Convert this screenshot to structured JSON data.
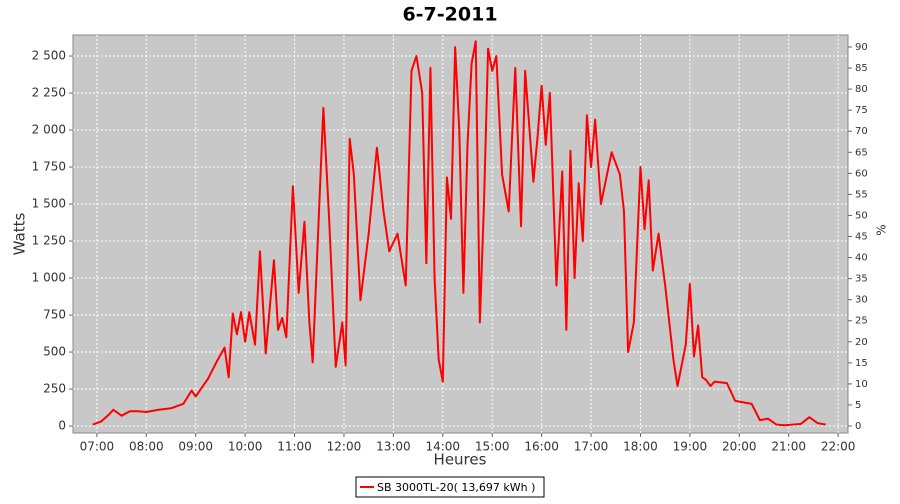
{
  "chart_data": {
    "type": "line",
    "title": "6-7-2011",
    "x_label": "Heures",
    "y_label": "Watts",
    "y2_label": "%",
    "x": [
      415,
      425,
      435,
      440,
      450,
      460,
      470,
      480,
      495,
      510,
      525,
      535,
      540,
      555,
      565,
      575,
      580,
      585,
      590,
      595,
      600,
      605,
      612,
      618,
      625,
      635,
      640,
      645,
      650,
      658,
      665,
      672,
      678,
      682,
      695,
      702,
      710,
      718,
      722,
      727,
      732,
      740,
      750,
      760,
      768,
      775,
      785,
      795,
      802,
      808,
      815,
      820,
      825,
      830,
      835,
      840,
      845,
      850,
      855,
      860,
      865,
      870,
      875,
      880,
      885,
      890,
      895,
      900,
      905,
      912,
      920,
      928,
      935,
      940,
      950,
      955,
      960,
      965,
      970,
      978,
      985,
      990,
      995,
      1000,
      1005,
      1010,
      1015,
      1020,
      1025,
      1032,
      1045,
      1055,
      1060,
      1065,
      1072,
      1080,
      1085,
      1090,
      1095,
      1102,
      1110,
      1120,
      1125,
      1135,
      1140,
      1145,
      1150,
      1155,
      1160,
      1165,
      1170,
      1185,
      1195,
      1205,
      1215,
      1225,
      1235,
      1245,
      1255,
      1265,
      1275,
      1285,
      1295,
      1305
    ],
    "series": [
      {
        "name": "SB 3000TL-20( 13,697 kWh  )",
        "color": "#ff0000",
        "values": [
          10,
          30,
          80,
          110,
          70,
          100,
          100,
          95,
          110,
          120,
          150,
          240,
          200,
          320,
          430,
          530,
          330,
          760,
          620,
          770,
          570,
          770,
          550,
          1180,
          490,
          1120,
          650,
          730,
          600,
          1620,
          900,
          1380,
          700,
          430,
          2150,
          1400,
          400,
          700,
          410,
          1940,
          1700,
          850,
          1300,
          1880,
          1450,
          1180,
          1300,
          950,
          2400,
          2500,
          2250,
          1100,
          2420,
          1000,
          450,
          300,
          1680,
          1400,
          2560,
          2000,
          900,
          1900,
          2450,
          2600,
          700,
          1500,
          2550,
          2400,
          2500,
          1700,
          1450,
          2420,
          1350,
          2400,
          1650,
          1950,
          2300,
          1900,
          2250,
          950,
          1720,
          650,
          1860,
          1000,
          1640,
          1250,
          2100,
          1750,
          2070,
          1500,
          1850,
          1700,
          1450,
          500,
          700,
          1750,
          1330,
          1660,
          1050,
          1300,
          950,
          450,
          270,
          550,
          960,
          470,
          680,
          330,
          310,
          270,
          300,
          290,
          170,
          160,
          150,
          40,
          50,
          10,
          5,
          10,
          15,
          60,
          20,
          10
        ]
      }
    ],
    "xlim": [
      391,
      1332
    ],
    "xticks": [
      {
        "value": 420,
        "label": "07:00"
      },
      {
        "value": 480,
        "label": "08:00"
      },
      {
        "value": 540,
        "label": "09:00"
      },
      {
        "value": 600,
        "label": "10:00"
      },
      {
        "value": 660,
        "label": "11:00"
      },
      {
        "value": 720,
        "label": "12:00"
      },
      {
        "value": 780,
        "label": "13:00"
      },
      {
        "value": 840,
        "label": "14:00"
      },
      {
        "value": 900,
        "label": "15:00"
      },
      {
        "value": 960,
        "label": "16:00"
      },
      {
        "value": 1020,
        "label": "17:00"
      },
      {
        "value": 1080,
        "label": "18:00"
      },
      {
        "value": 1140,
        "label": "19:00"
      },
      {
        "value": 1200,
        "label": "20:00"
      },
      {
        "value": 1260,
        "label": "21:00"
      },
      {
        "value": 1320,
        "label": "22:00"
      }
    ],
    "ylim": [
      -47,
      2642
    ],
    "yticks": [
      0,
      250,
      500,
      750,
      {
        "value": 1000,
        "label": "1 000"
      },
      {
        "value": 1250,
        "label": "1 250"
      },
      {
        "value": 1500,
        "label": "1 500"
      },
      {
        "value": 1750,
        "label": "1 750"
      },
      {
        "value": 2000,
        "label": "2 000"
      },
      {
        "value": 2250,
        "label": "2 250"
      },
      {
        "value": 2500,
        "label": "2 500"
      }
    ],
    "y2lim": [
      -1.66,
      92.85
    ],
    "y2ticks": [
      0,
      5,
      10,
      15,
      20,
      25,
      30,
      35,
      40,
      45,
      50,
      55,
      60,
      65,
      70,
      75,
      80,
      85,
      90
    ],
    "grid": true,
    "legend": "bottom"
  }
}
